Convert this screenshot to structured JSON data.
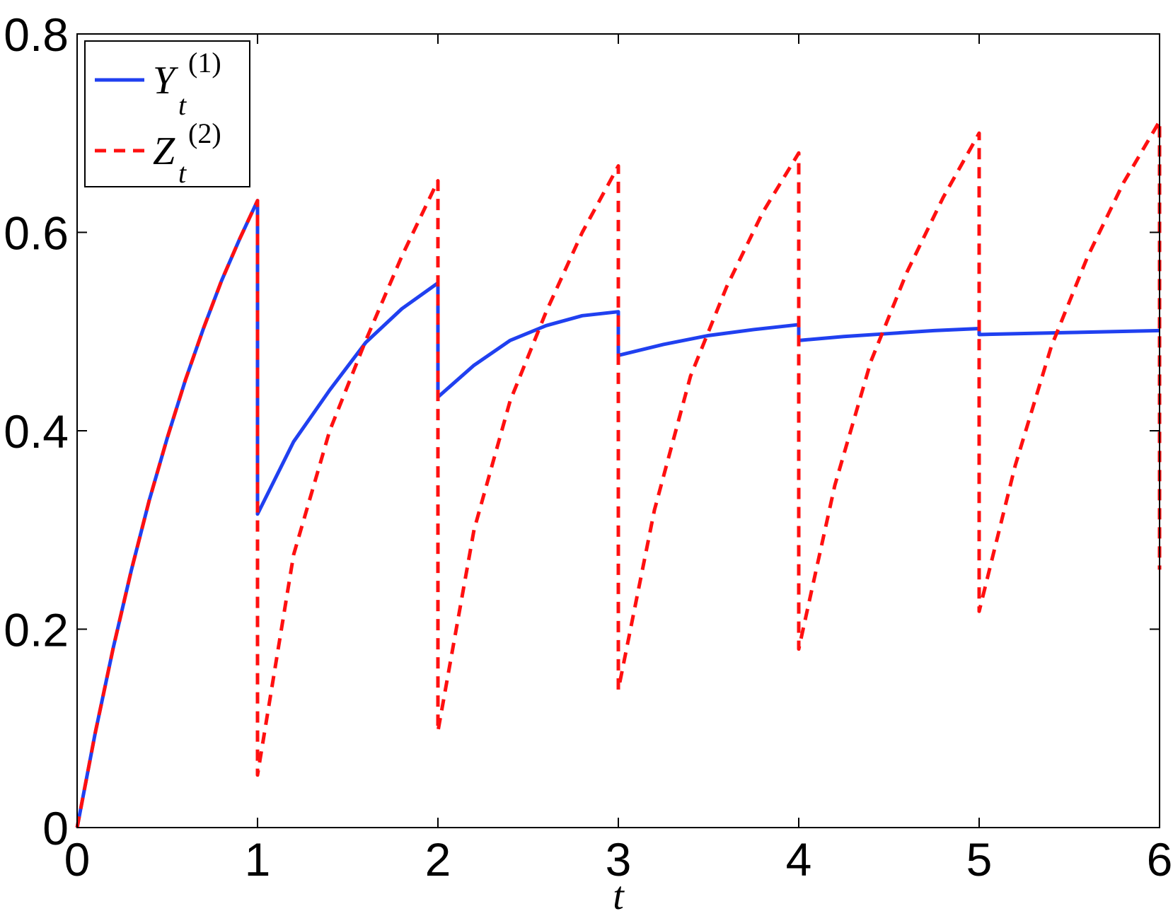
{
  "chart_data": {
    "type": "line",
    "title": "",
    "xlabel": "t",
    "ylabel": "",
    "xlim": [
      0,
      6
    ],
    "ylim": [
      0,
      0.8
    ],
    "xticks": [
      0,
      1,
      2,
      3,
      4,
      5,
      6
    ],
    "xtick_labels": [
      "0",
      "1",
      "2",
      "3",
      "4",
      "5",
      "6"
    ],
    "yticks": [
      0,
      0.2,
      0.4,
      0.6,
      0.8
    ],
    "ytick_labels": [
      "0",
      "0.2",
      "0.4",
      "0.6",
      "0.8"
    ],
    "grid": false,
    "legend_position": "top-left",
    "series": [
      {
        "name": "Y_t^(1)",
        "legend_main": "Y",
        "legend_sub": "t",
        "legend_sup": "(1)",
        "color": "#2040f0",
        "style": "solid",
        "x": [
          0,
          0.1,
          0.2,
          0.3,
          0.4,
          0.5,
          0.6,
          0.7,
          0.8,
          0.9,
          1.0,
          1.0,
          1.2,
          1.4,
          1.6,
          1.8,
          2.0,
          2.0,
          2.2,
          2.4,
          2.6,
          2.8,
          3.0,
          3.0,
          3.25,
          3.5,
          3.75,
          4.0,
          4.0,
          4.25,
          4.5,
          4.75,
          5.0,
          5.0,
          5.25,
          5.5,
          5.75,
          6.0
        ],
        "y": [
          0,
          0.095,
          0.181,
          0.259,
          0.33,
          0.393,
          0.451,
          0.503,
          0.551,
          0.593,
          0.632,
          0.316,
          0.389,
          0.441,
          0.489,
          0.523,
          0.549,
          0.434,
          0.466,
          0.491,
          0.506,
          0.516,
          0.52,
          0.476,
          0.487,
          0.496,
          0.502,
          0.507,
          0.491,
          0.495,
          0.498,
          0.501,
          0.503,
          0.497,
          0.498,
          0.499,
          0.5,
          0.501
        ]
      },
      {
        "name": "Z_t^(2)",
        "legend_main": "Z",
        "legend_sub": "t",
        "legend_sup": "(2)",
        "color": "#ff1010",
        "style": "dashed",
        "x": [
          0,
          0.1,
          0.2,
          0.3,
          0.4,
          0.5,
          0.6,
          0.7,
          0.8,
          0.9,
          1.0,
          1.0,
          1.2,
          1.4,
          1.6,
          1.8,
          2.0,
          2.0,
          2.2,
          2.4,
          2.6,
          2.8,
          3.0,
          3.0,
          3.2,
          3.4,
          3.6,
          3.8,
          4.0,
          4.0,
          4.2,
          4.4,
          4.6,
          4.8,
          5.0,
          5.0,
          5.2,
          5.4,
          5.6,
          5.8,
          6.0,
          6.0
        ],
        "y": [
          0,
          0.095,
          0.181,
          0.259,
          0.33,
          0.393,
          0.451,
          0.503,
          0.551,
          0.593,
          0.632,
          0.053,
          0.275,
          0.4,
          0.491,
          0.576,
          0.652,
          0.097,
          0.3,
          0.43,
          0.52,
          0.6,
          0.667,
          0.139,
          0.32,
          0.455,
          0.545,
          0.62,
          0.68,
          0.18,
          0.345,
          0.47,
          0.56,
          0.635,
          0.7,
          0.218,
          0.365,
          0.485,
          0.575,
          0.65,
          0.712,
          0.26
        ]
      }
    ]
  }
}
